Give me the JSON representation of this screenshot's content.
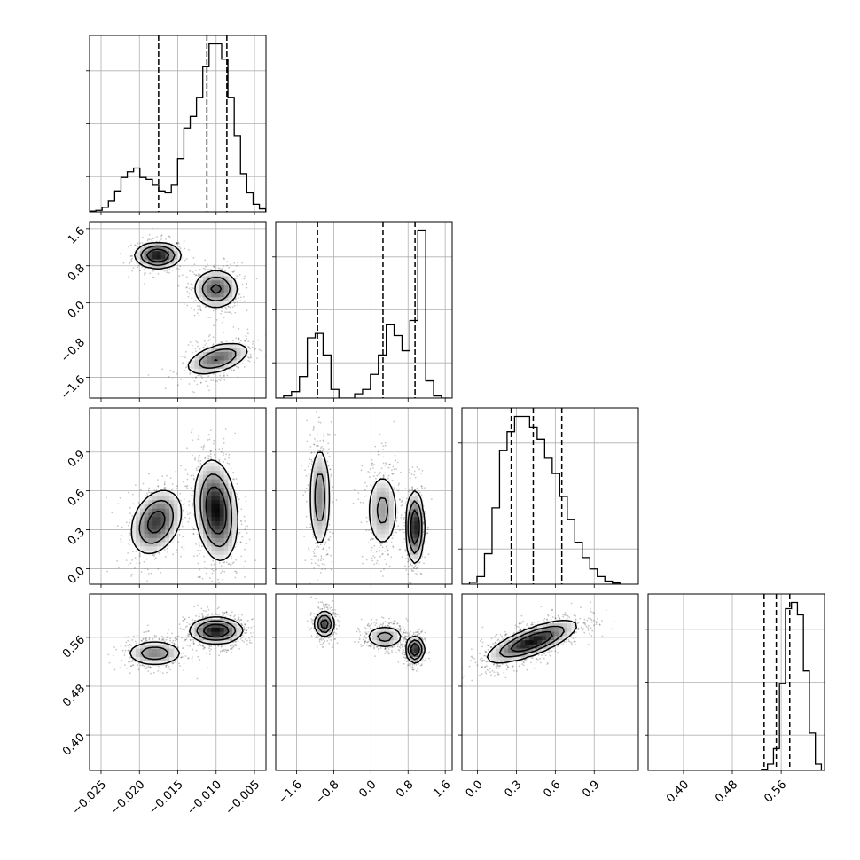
{
  "chart_data": {
    "type": "corner",
    "grid": true,
    "parameters": [
      {
        "range": [
          -0.0265,
          -0.0035
        ],
        "ticks": [
          -0.025,
          -0.02,
          -0.015,
          -0.01,
          -0.005
        ],
        "tick_labels": [
          "−0.025",
          "−0.020",
          "−0.015",
          "−0.010",
          "−0.005"
        ]
      },
      {
        "range": [
          -2.05,
          1.75
        ],
        "ticks": [
          -1.6,
          -0.8,
          0.0,
          0.8,
          1.6
        ],
        "tick_labels": [
          "−1.6",
          "−0.8",
          "0.0",
          "0.8",
          "1.6"
        ]
      },
      {
        "range": [
          -0.12,
          1.24
        ],
        "ticks": [
          0.0,
          0.3,
          0.6,
          0.9
        ],
        "tick_labels": [
          "0.0",
          "0.3",
          "0.6",
          "0.9"
        ]
      },
      {
        "range": [
          0.342,
          0.631
        ],
        "ticks": [
          0.4,
          0.48,
          0.56
        ],
        "tick_labels": [
          "0.40",
          "0.48",
          "0.56"
        ]
      }
    ],
    "quantiles": [
      [
        -0.0175,
        -0.0112,
        -0.0086
      ],
      [
        -1.15,
        0.26,
        0.95
      ],
      [
        0.26,
        0.43,
        0.65
      ],
      [
        0.532,
        0.552,
        0.574
      ]
    ],
    "histograms": [
      [
        0.002,
        0.004,
        0.012,
        0.028,
        0.055,
        0.09,
        0.105,
        0.115,
        0.09,
        0.085,
        0.07,
        0.055,
        0.05,
        0.07,
        0.14,
        0.22,
        0.25,
        0.3,
        0.38,
        0.44,
        0.44,
        0.4,
        0.3,
        0.2,
        0.1,
        0.05,
        0.02,
        0.008
      ],
      [
        0.0,
        0.01,
        0.03,
        0.1,
        0.28,
        0.3,
        0.2,
        0.04,
        0.0,
        0.0,
        0.02,
        0.04,
        0.11,
        0.2,
        0.34,
        0.29,
        0.22,
        0.36,
        0.78,
        0.08,
        0.01,
        0.0
      ],
      [
        0.0,
        0.005,
        0.02,
        0.08,
        0.2,
        0.35,
        0.4,
        0.44,
        0.44,
        0.41,
        0.38,
        0.33,
        0.29,
        0.23,
        0.17,
        0.11,
        0.07,
        0.04,
        0.02,
        0.008,
        0.003
      ],
      [
        0.0,
        0.002,
        0.01,
        0.035,
        0.14,
        0.26,
        0.27,
        0.25,
        0.16,
        0.06,
        0.01,
        0.0
      ]
    ],
    "hist_edges": [
      {
        "start": -0.0265,
        "width": 0.00082
      },
      {
        "start": -2.05,
        "width": 0.17
      },
      {
        "start": -0.12,
        "width": 0.058
      },
      {
        "start": 0.518,
        "width": 0.0098
      }
    ],
    "panels": [
      {
        "row": 1,
        "col": 0,
        "clusters": [
          {
            "mx": -0.0176,
            "my": 1.02,
            "sx": 0.0014,
            "sy": 0.13,
            "rho": 0.0,
            "w": 0.33
          },
          {
            "mx": -0.01,
            "my": 0.3,
            "sx": 0.0014,
            "sy": 0.2,
            "rho": 0.0,
            "w": 0.34
          },
          {
            "mx": -0.0098,
            "my": -1.2,
            "sx": 0.002,
            "sy": 0.17,
            "rho": 0.5,
            "w": 0.33
          }
        ]
      },
      {
        "row": 2,
        "col": 0,
        "clusters": [
          {
            "mx": -0.0178,
            "my": 0.36,
            "sx": 0.0016,
            "sy": 0.12,
            "rho": 0.3,
            "w": 0.38
          },
          {
            "mx": -0.01,
            "my": 0.45,
            "sx": 0.0013,
            "sy": 0.18,
            "rho": -0.2,
            "w": 0.62
          }
        ]
      },
      {
        "row": 3,
        "col": 0,
        "clusters": [
          {
            "mx": -0.018,
            "my": 0.534,
            "sx": 0.0018,
            "sy": 0.01,
            "rho": 0.0,
            "w": 0.35
          },
          {
            "mx": -0.01,
            "my": 0.571,
            "sx": 0.0016,
            "sy": 0.01,
            "rho": 0.0,
            "w": 0.65
          }
        ]
      },
      {
        "row": 2,
        "col": 1,
        "clusters": [
          {
            "mx": -1.1,
            "my": 0.55,
            "sx": 0.11,
            "sy": 0.2,
            "rho": 0.0,
            "w": 0.33
          },
          {
            "mx": 0.25,
            "my": 0.45,
            "sx": 0.17,
            "sy": 0.15,
            "rho": 0.0,
            "w": 0.3
          },
          {
            "mx": 0.95,
            "my": 0.32,
            "sx": 0.09,
            "sy": 0.13,
            "rho": 0.0,
            "w": 0.37
          }
        ]
      },
      {
        "row": 3,
        "col": 1,
        "clusters": [
          {
            "mx": -1.0,
            "my": 0.582,
            "sx": 0.1,
            "sy": 0.01,
            "rho": 0.0,
            "w": 0.33
          },
          {
            "mx": 0.3,
            "my": 0.561,
            "sx": 0.2,
            "sy": 0.009,
            "rho": 0.0,
            "w": 0.3
          },
          {
            "mx": 0.95,
            "my": 0.54,
            "sx": 0.09,
            "sy": 0.01,
            "rho": 0.0,
            "w": 0.37
          }
        ]
      },
      {
        "row": 3,
        "col": 2,
        "clusters": [
          {
            "mx": 0.42,
            "my": 0.553,
            "sx": 0.16,
            "sy": 0.016,
            "rho": 0.75,
            "w": 1.0
          }
        ]
      }
    ]
  }
}
